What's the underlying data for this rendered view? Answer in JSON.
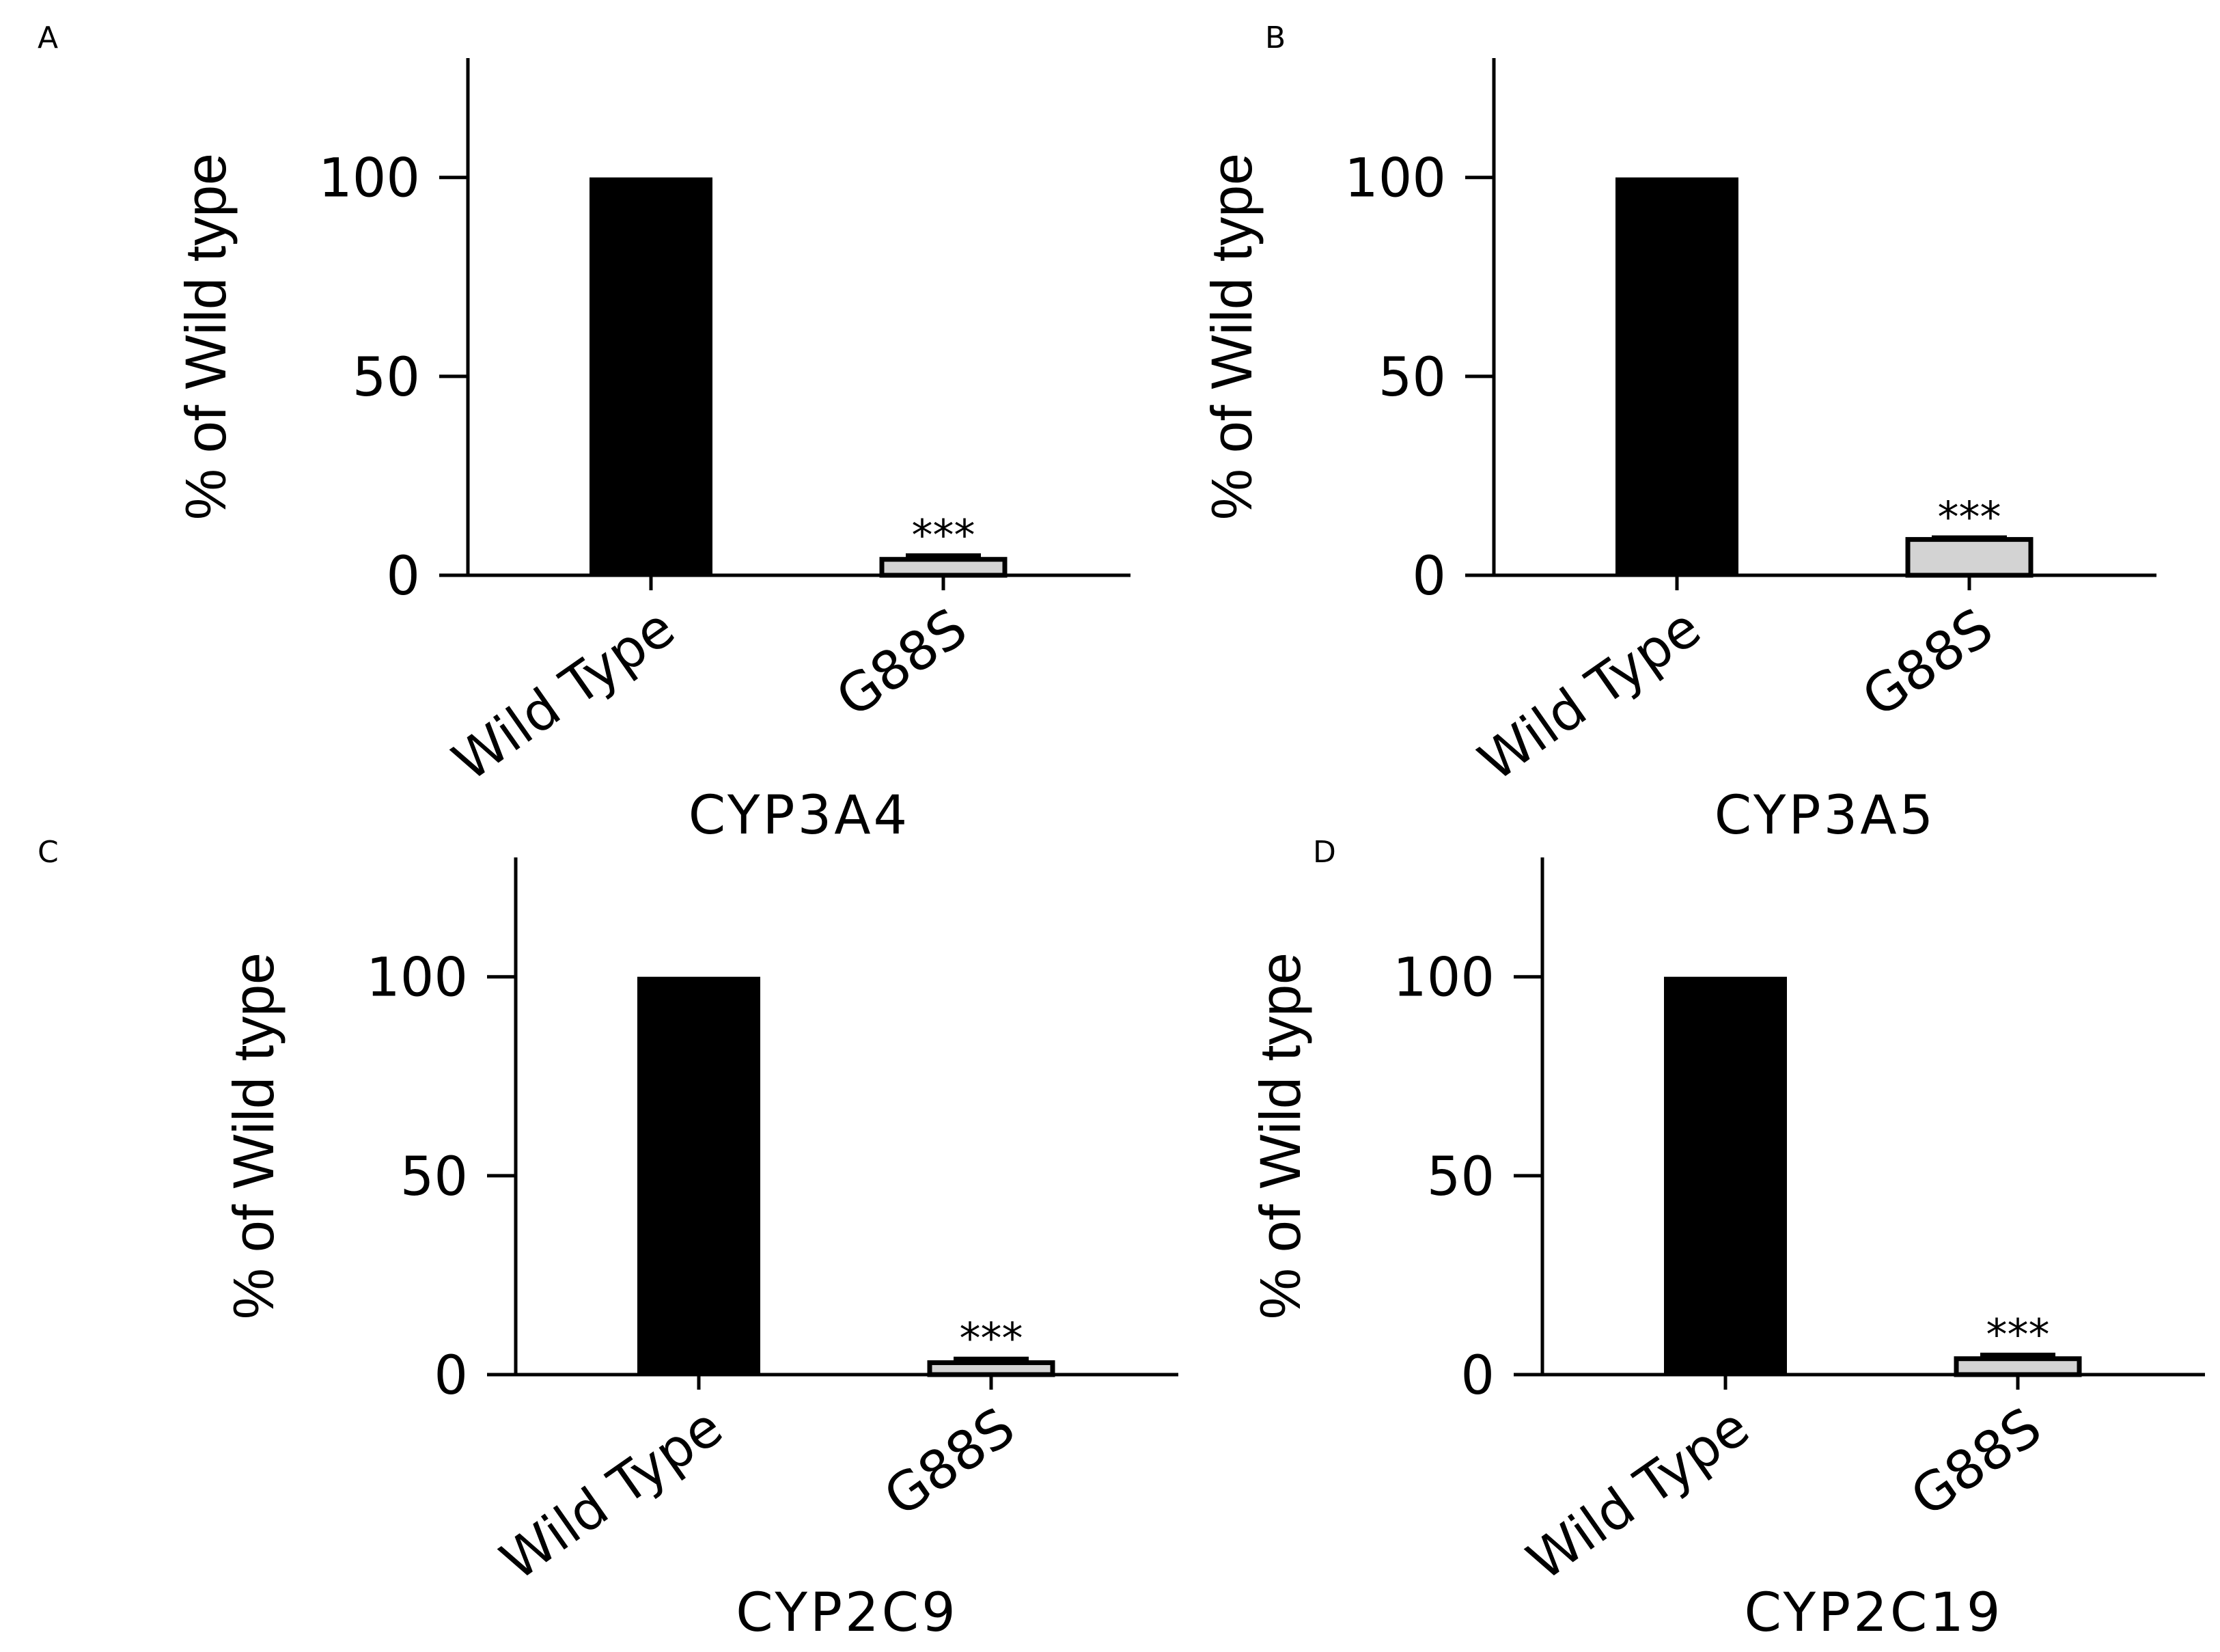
{
  "chart_data": [
    {
      "panel": "A",
      "type": "bar",
      "categories": [
        "Wild Type",
        "G88S"
      ],
      "values": [
        100,
        4
      ],
      "error": [
        0,
        1
      ],
      "bar_colors": [
        "#000000",
        "#d3d3d3"
      ],
      "significance": [
        "",
        "***"
      ],
      "title": "",
      "xlabel": "CYP3A4",
      "ylabel": "% of Wild type",
      "ylim": [
        0,
        130
      ],
      "yticks": [
        0,
        50,
        100
      ],
      "grid": false
    },
    {
      "panel": "B",
      "type": "bar",
      "categories": [
        "Wild Type",
        "G88S"
      ],
      "values": [
        100,
        9
      ],
      "error": [
        0,
        0.5
      ],
      "bar_colors": [
        "#000000",
        "#d3d3d3"
      ],
      "significance": [
        "",
        "***"
      ],
      "title": "",
      "xlabel": "CYP3A5",
      "ylabel": "% of Wild type",
      "ylim": [
        0,
        130
      ],
      "yticks": [
        0,
        50,
        100
      ],
      "grid": false
    },
    {
      "panel": "C",
      "type": "bar",
      "categories": [
        "Wild Type",
        "G88S"
      ],
      "values": [
        100,
        3
      ],
      "error": [
        0,
        1
      ],
      "bar_colors": [
        "#000000",
        "#d3d3d3"
      ],
      "significance": [
        "",
        "***"
      ],
      "title": "",
      "xlabel": "CYP2C9",
      "ylabel": "% of Wild type",
      "ylim": [
        0,
        130
      ],
      "yticks": [
        0,
        50,
        100
      ],
      "grid": false
    },
    {
      "panel": "D",
      "type": "bar",
      "categories": [
        "Wild Type",
        "G88S"
      ],
      "values": [
        100,
        4
      ],
      "error": [
        0,
        1
      ],
      "bar_colors": [
        "#000000",
        "#d3d3d3"
      ],
      "significance": [
        "",
        "***"
      ],
      "title": "",
      "xlabel": "CYP2C19",
      "ylabel": "% of Wild type",
      "ylim": [
        0,
        130
      ],
      "yticks": [
        0,
        50,
        100
      ],
      "grid": false
    }
  ]
}
